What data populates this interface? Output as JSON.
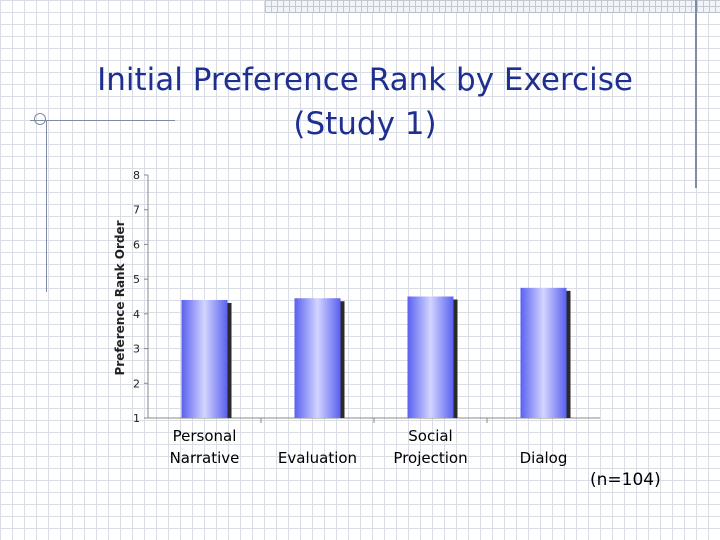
{
  "slide": {
    "title_line1": "Initial Preference Rank by Exercise",
    "title_line2": "(Study 1)",
    "note": "(n=104)"
  },
  "colors": {
    "title": "#1f2f8f",
    "bar_edge": "#5a60f0",
    "bar_center": "#d2d5ff",
    "bar_shadow": "#2a2a2a"
  },
  "chart_data": {
    "type": "bar",
    "title": "",
    "xlabel": "",
    "ylabel": "Preference Rank Order",
    "ylim": [
      1,
      8
    ],
    "yticks": [
      1,
      2,
      3,
      4,
      5,
      6,
      7,
      8
    ],
    "grid": false,
    "categories": [
      [
        "Personal",
        "Narrative"
      ],
      [
        "Evaluation"
      ],
      [
        "Social",
        "Projection"
      ],
      [
        "Dialog"
      ]
    ],
    "values": [
      4.4,
      4.45,
      4.5,
      4.75
    ]
  }
}
